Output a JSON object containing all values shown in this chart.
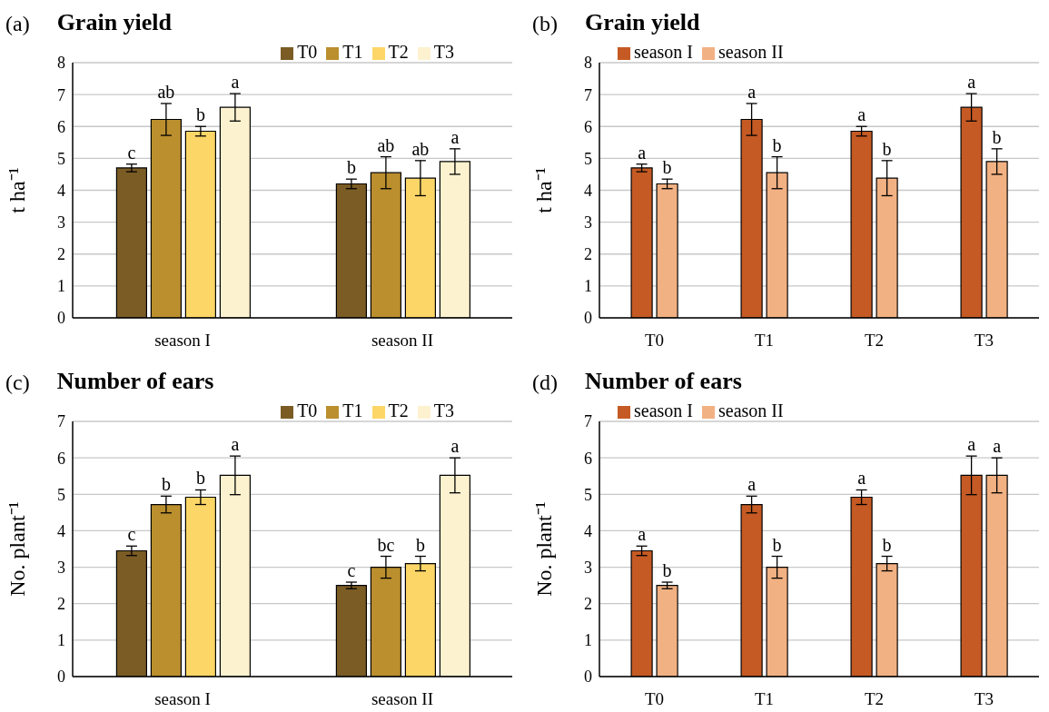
{
  "chart_data": [
    {
      "type": "bar",
      "title": "Grain yield",
      "annotations": [
        "(a)"
      ],
      "ylabel": "t ha⁻¹",
      "categories": [
        "season I",
        "season II"
      ],
      "ylim": [
        0,
        8
      ],
      "yticks": [
        0,
        1,
        2,
        3,
        4,
        5,
        6,
        7,
        8
      ],
      "grid": "y",
      "legend": "top right",
      "series": [
        {
          "name": "T0",
          "color": "#7b5c25",
          "values": [
            4.7,
            4.2
          ],
          "errors": [
            0.12,
            0.15
          ],
          "value_labels": [
            "c",
            "b"
          ]
        },
        {
          "name": "T1",
          "color": "#bb8f2e",
          "values": [
            6.22,
            4.55
          ],
          "errors": [
            0.5,
            0.5
          ],
          "value_labels": [
            "ab",
            "ab"
          ]
        },
        {
          "name": "T2",
          "color": "#fcd667",
          "values": [
            5.85,
            4.38
          ],
          "errors": [
            0.15,
            0.55
          ],
          "value_labels": [
            "b",
            "ab"
          ]
        },
        {
          "name": "T3",
          "color": "#fdf2cf",
          "values": [
            6.6,
            4.9
          ],
          "errors": [
            0.43,
            0.4
          ],
          "value_labels": [
            "a",
            "a"
          ]
        }
      ]
    },
    {
      "type": "bar",
      "title": "Grain yield",
      "annotations": [
        "(b)"
      ],
      "ylabel": "t ha⁻¹",
      "categories": [
        "T0",
        "T1",
        "T2",
        "T3"
      ],
      "ylim": [
        0,
        8
      ],
      "yticks": [
        0,
        1,
        2,
        3,
        4,
        5,
        6,
        7,
        8
      ],
      "grid": "y",
      "legend": "top left",
      "series": [
        {
          "name": "season I",
          "color": "#c55a24",
          "values": [
            4.7,
            6.22,
            5.85,
            6.6
          ],
          "errors": [
            0.12,
            0.5,
            0.15,
            0.43
          ],
          "value_labels": [
            "a",
            "a",
            "a",
            "a"
          ]
        },
        {
          "name": "season II",
          "color": "#f2b183",
          "values": [
            4.2,
            4.55,
            4.38,
            4.9
          ],
          "errors": [
            0.15,
            0.5,
            0.55,
            0.4
          ],
          "value_labels": [
            "b",
            "b",
            "b",
            "b"
          ]
        }
      ]
    },
    {
      "type": "bar",
      "title": "Number of ears",
      "annotations": [
        "(c)"
      ],
      "ylabel": "No. plant⁻¹",
      "categories": [
        "season I",
        "season II"
      ],
      "ylim": [
        0,
        7
      ],
      "yticks": [
        0,
        1,
        2,
        3,
        4,
        5,
        6,
        7
      ],
      "grid": "y",
      "legend": "top right",
      "series": [
        {
          "name": "T0",
          "color": "#7b5c25",
          "values": [
            3.45,
            2.5
          ],
          "errors": [
            0.13,
            0.09
          ],
          "value_labels": [
            "c",
            "c"
          ]
        },
        {
          "name": "T1",
          "color": "#bb8f2e",
          "values": [
            4.72,
            3.0
          ],
          "errors": [
            0.23,
            0.3
          ],
          "value_labels": [
            "b",
            "bc"
          ]
        },
        {
          "name": "T2",
          "color": "#fcd667",
          "values": [
            4.92,
            3.1
          ],
          "errors": [
            0.2,
            0.2
          ],
          "value_labels": [
            "b",
            "b"
          ]
        },
        {
          "name": "T3",
          "color": "#fdf2cf",
          "values": [
            5.52,
            5.52
          ],
          "errors": [
            0.53,
            0.48
          ],
          "value_labels": [
            "a",
            "a"
          ]
        }
      ]
    },
    {
      "type": "bar",
      "title": "Number of ears",
      "annotations": [
        "(d)"
      ],
      "ylabel": "No. plant⁻¹",
      "categories": [
        "T0",
        "T1",
        "T2",
        "T3"
      ],
      "ylim": [
        0,
        7
      ],
      "yticks": [
        0,
        1,
        2,
        3,
        4,
        5,
        6,
        7
      ],
      "grid": "y",
      "legend": "top left",
      "series": [
        {
          "name": "season I",
          "color": "#c55a24",
          "values": [
            3.45,
            4.72,
            4.92,
            5.52
          ],
          "errors": [
            0.13,
            0.23,
            0.2,
            0.53
          ],
          "value_labels": [
            "a",
            "a",
            "a",
            "a"
          ]
        },
        {
          "name": "season II",
          "color": "#f2b183",
          "values": [
            2.5,
            3.0,
            3.1,
            5.52
          ],
          "errors": [
            0.09,
            0.3,
            0.2,
            0.48
          ],
          "value_labels": [
            "b",
            "b",
            "b",
            "a"
          ]
        }
      ]
    }
  ]
}
